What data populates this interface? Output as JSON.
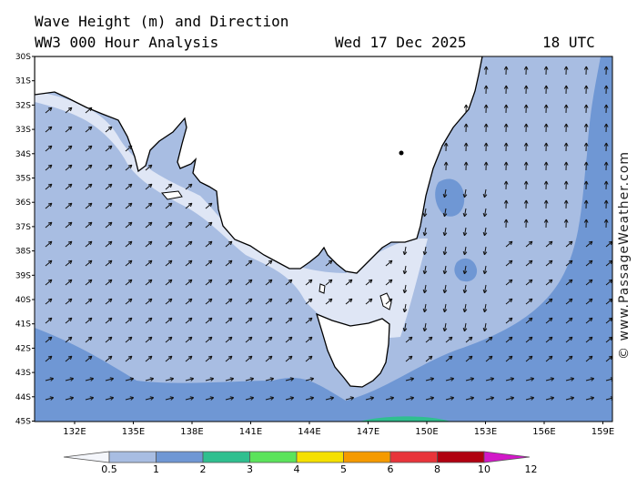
{
  "header": {
    "title": "Wave Height (m) and Direction",
    "subtitle": "WW3 000 Hour Analysis",
    "date": "Wed 17 Dec 2025",
    "time": "18 UTC"
  },
  "watermark": "© www.PassageWeather.com",
  "map": {
    "lat_labels": [
      "30S",
      "31S",
      "32S",
      "33S",
      "34S",
      "35S",
      "36S",
      "37S",
      "38S",
      "39S",
      "40S",
      "41S",
      "42S",
      "43S",
      "44S",
      "45S"
    ],
    "lon_labels": [
      "132E",
      "135E",
      "138E",
      "141E",
      "144E",
      "147E",
      "150E",
      "153E",
      "156E",
      "159E"
    ],
    "colors": {
      "land": "#ffffff",
      "band_0_5_1": "#dfe6f5",
      "band_1_2": "#a8bde2",
      "band_2_3": "#6f97d4",
      "band_3_4": "#2fbf8f"
    }
  },
  "legend": {
    "labels": [
      "0.5",
      "1",
      "2",
      "3",
      "4",
      "5",
      "6",
      "8",
      "10",
      "12"
    ],
    "colors": [
      "#dfe6f5",
      "#a8bde2",
      "#6f97d4",
      "#2fbf8f",
      "#5be35b",
      "#f5e000",
      "#f59a00",
      "#e8343a",
      "#b00010",
      "#d218c8"
    ]
  }
}
